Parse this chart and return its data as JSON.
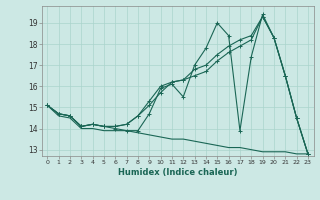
{
  "xlabel": "Humidex (Indice chaleur)",
  "xlim": [
    -0.5,
    23.5
  ],
  "ylim": [
    12.7,
    19.8
  ],
  "yticks": [
    13,
    14,
    15,
    16,
    17,
    18,
    19
  ],
  "xticks": [
    0,
    1,
    2,
    3,
    4,
    5,
    6,
    7,
    8,
    9,
    10,
    11,
    12,
    13,
    14,
    15,
    16,
    17,
    18,
    19,
    20,
    21,
    22,
    23
  ],
  "bg_color": "#cce8e4",
  "grid_color": "#aad4cc",
  "line_color": "#1a6655",
  "series": [
    [
      15.1,
      14.7,
      14.6,
      14.1,
      14.2,
      14.1,
      14.0,
      13.9,
      13.9,
      14.7,
      15.9,
      16.1,
      15.5,
      17.0,
      17.8,
      19.0,
      18.4,
      13.9,
      17.4,
      19.4,
      18.3,
      16.5,
      14.5,
      12.8
    ],
    [
      15.1,
      14.7,
      14.6,
      14.1,
      14.2,
      14.1,
      14.1,
      14.2,
      14.6,
      15.3,
      16.0,
      16.2,
      16.3,
      16.5,
      16.7,
      17.2,
      17.6,
      17.9,
      18.2,
      19.3,
      18.3,
      16.5,
      14.5,
      12.8
    ],
    [
      15.1,
      14.7,
      14.6,
      14.1,
      14.2,
      14.1,
      14.1,
      14.2,
      14.6,
      15.1,
      15.7,
      16.2,
      16.3,
      16.8,
      17.0,
      17.5,
      17.9,
      18.2,
      18.4,
      19.3,
      18.3,
      16.5,
      14.5,
      12.8
    ],
    [
      15.1,
      14.6,
      14.5,
      14.0,
      14.0,
      13.9,
      13.9,
      13.9,
      13.8,
      13.7,
      13.6,
      13.5,
      13.5,
      13.4,
      13.3,
      13.2,
      13.1,
      13.1,
      13.0,
      12.9,
      12.9,
      12.9,
      12.8,
      12.8
    ]
  ],
  "markers": [
    true,
    true,
    true,
    false
  ]
}
